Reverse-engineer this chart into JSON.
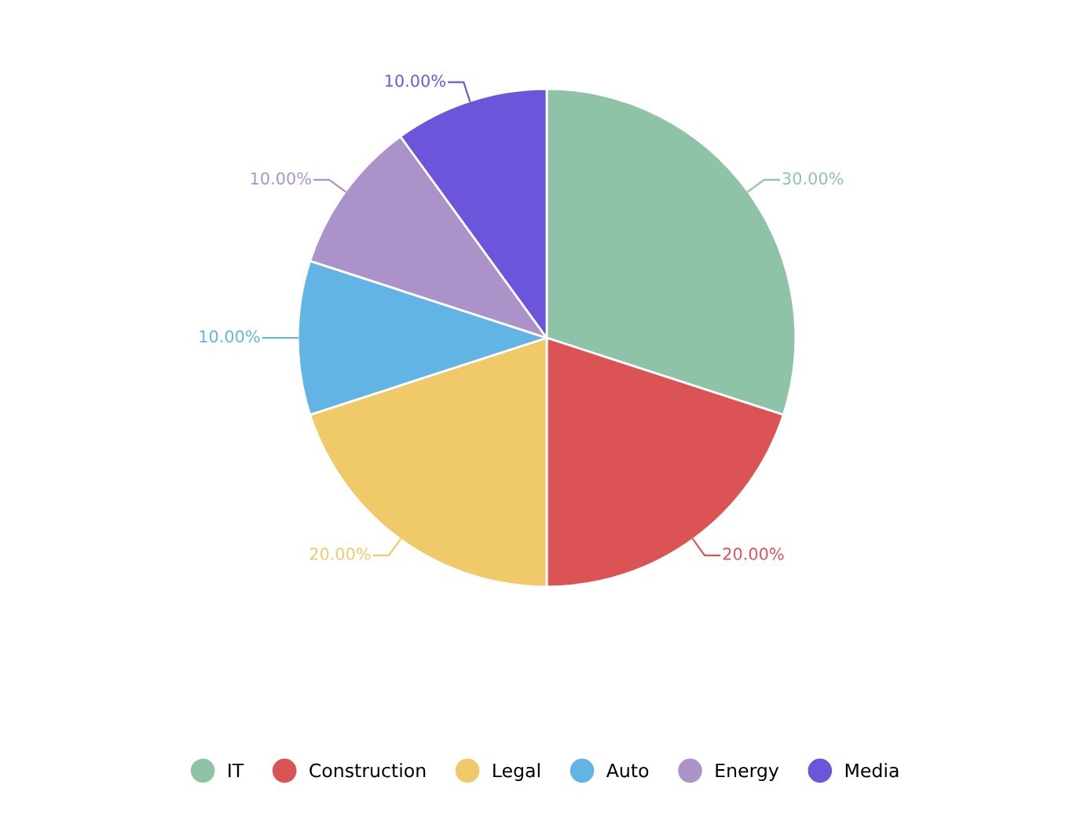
{
  "chart_data": {
    "type": "pie",
    "categories": [
      "IT",
      "Construction",
      "Legal",
      "Auto",
      "Energy",
      "Media"
    ],
    "values": [
      30,
      20,
      20,
      10,
      10,
      10
    ],
    "value_labels": [
      "30.00%",
      "20.00%",
      "20.00%",
      "10.00%",
      "10.00%",
      "10.00%"
    ],
    "colors": [
      "#8ec3a7",
      "#dc5356",
      "#f0ca68",
      "#62b4e5",
      "#ab93c9",
      "#6d55db"
    ],
    "legend": "bottom"
  }
}
